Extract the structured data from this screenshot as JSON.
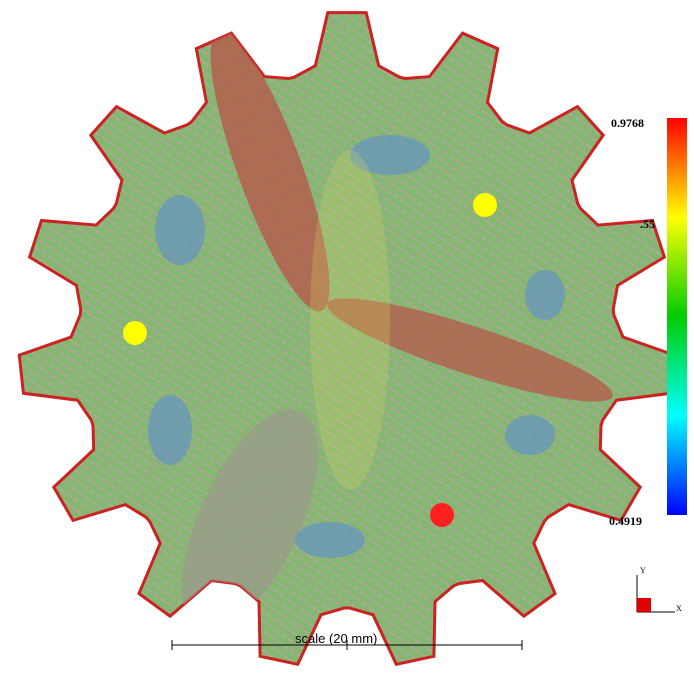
{
  "colorbar": {
    "max": "0.9768",
    "mid": ".55",
    "min": "0.4919"
  },
  "scale_label": "scale (20 mm)",
  "axes": {
    "y": "Y",
    "x": "X"
  }
}
